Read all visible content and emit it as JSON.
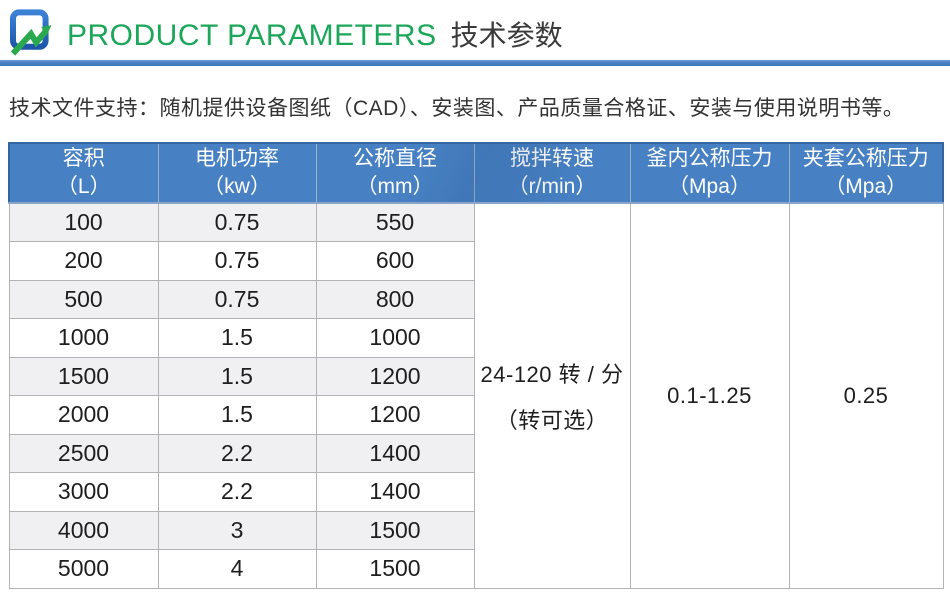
{
  "header": {
    "title_en": "PRODUCT PARAMETERS",
    "title_zh": "技术参数",
    "logo_icon": "blue-square-green-arrow-logo"
  },
  "intro": {
    "text": "技术文件支持：随机提供设备图纸（CAD）、安装图、产品质量合格证、安装与使用说明书等。"
  },
  "table": {
    "columns": [
      {
        "line1": "容积",
        "line2": "（L）"
      },
      {
        "line1": "电机功率",
        "line2": "（kw）"
      },
      {
        "line1": "公称直径",
        "line2": "（mm）"
      },
      {
        "line1": "搅拌转速",
        "line2": "（r/min）"
      },
      {
        "line1": "釜内公称压力",
        "line2": "（Mpa）"
      },
      {
        "line1": "夹套公称压力",
        "line2": "（Mpa）"
      }
    ],
    "rows": [
      [
        "100",
        "0.75",
        "550"
      ],
      [
        "200",
        "0.75",
        "600"
      ],
      [
        "500",
        "0.75",
        "800"
      ],
      [
        "1000",
        "1.5",
        "1000"
      ],
      [
        "1500",
        "1.5",
        "1200"
      ],
      [
        "2000",
        "1.5",
        "1200"
      ],
      [
        "2500",
        "2.2",
        "1400"
      ],
      [
        "3000",
        "2.2",
        "1400"
      ],
      [
        "4000",
        "3",
        "1500"
      ],
      [
        "5000",
        "4",
        "1500"
      ]
    ],
    "merged": {
      "stir_speed_line1": "24-120 转 / 分",
      "stir_speed_line2": "（转可选）",
      "kettle_pressure": "0.1-1.25",
      "jacket_pressure": "0.25"
    }
  },
  "colors": {
    "accent_blue": "#4781c3",
    "title_green": "#1ca65a",
    "alt_row_gray": "#f0f0f2",
    "logo_blue": "#2566b4",
    "logo_green": "#2aa94f"
  }
}
